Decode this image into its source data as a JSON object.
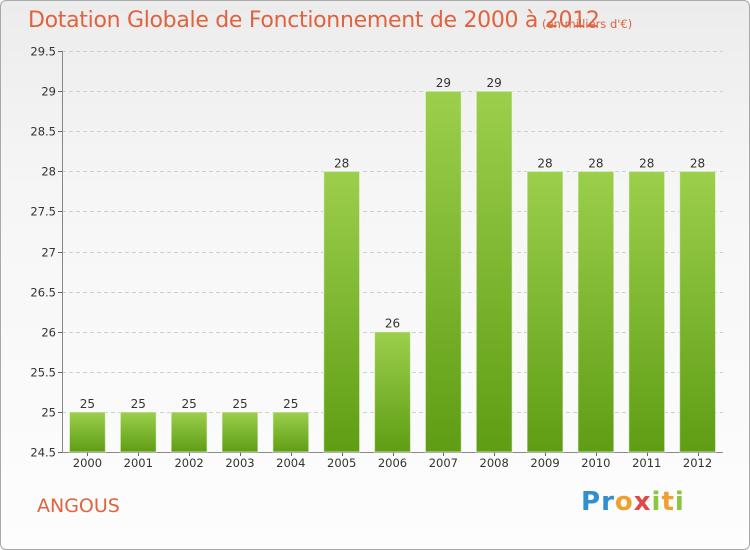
{
  "header": {
    "title": "Dotation Globale de Fonctionnement de 2000 à 2012",
    "subtitle": "(en milliers d'€)"
  },
  "footer": {
    "town": "ANGOUS",
    "logo": "Proxiti"
  },
  "colors": {
    "title": "#e0633f",
    "bar_light": "#9ccf4c",
    "bar_dark": "#5f9d14",
    "grid": "#cfcfcf"
  },
  "chart_data": {
    "type": "bar",
    "title": "Dotation Globale de Fonctionnement de 2000 à 2012",
    "subtitle": "(en milliers d'€)",
    "xlabel": "",
    "ylabel": "",
    "categories": [
      "2000",
      "2001",
      "2002",
      "2003",
      "2004",
      "2005",
      "2006",
      "2007",
      "2008",
      "2009",
      "2010",
      "2011",
      "2012"
    ],
    "values": [
      25,
      25,
      25,
      25,
      25,
      28,
      26,
      29,
      29,
      28,
      28,
      28,
      28
    ],
    "ylim": [
      24.5,
      29.5
    ],
    "yticks": [
      "24.5",
      "25",
      "25.5",
      "26",
      "26.5",
      "27",
      "27.5",
      "28",
      "28.5",
      "29",
      "29.5"
    ],
    "grid": true,
    "legend": "none"
  }
}
